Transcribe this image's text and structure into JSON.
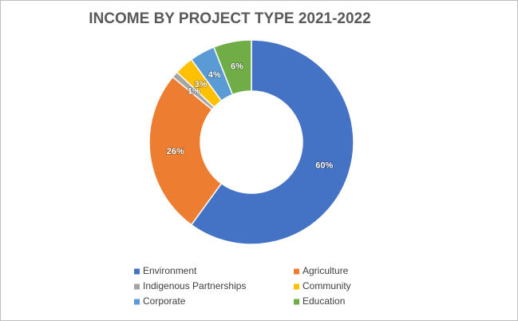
{
  "chart_data": {
    "type": "donut",
    "title": "INCOME BY PROJECT TYPE 2021-2022",
    "categories": [
      "Environment",
      "Agriculture",
      "Indigenous Partnerships",
      "Community",
      "Corporate",
      "Education"
    ],
    "values": [
      60,
      26,
      1,
      3,
      4,
      6
    ],
    "value_labels": [
      "60%",
      "26%",
      "1%",
      "3%",
      "4%",
      "6%"
    ],
    "colors": [
      "#4472c4",
      "#ed7d31",
      "#a5a5a5",
      "#ffc000",
      "#5b9bd5",
      "#70ad47"
    ],
    "legend": "bottom"
  }
}
